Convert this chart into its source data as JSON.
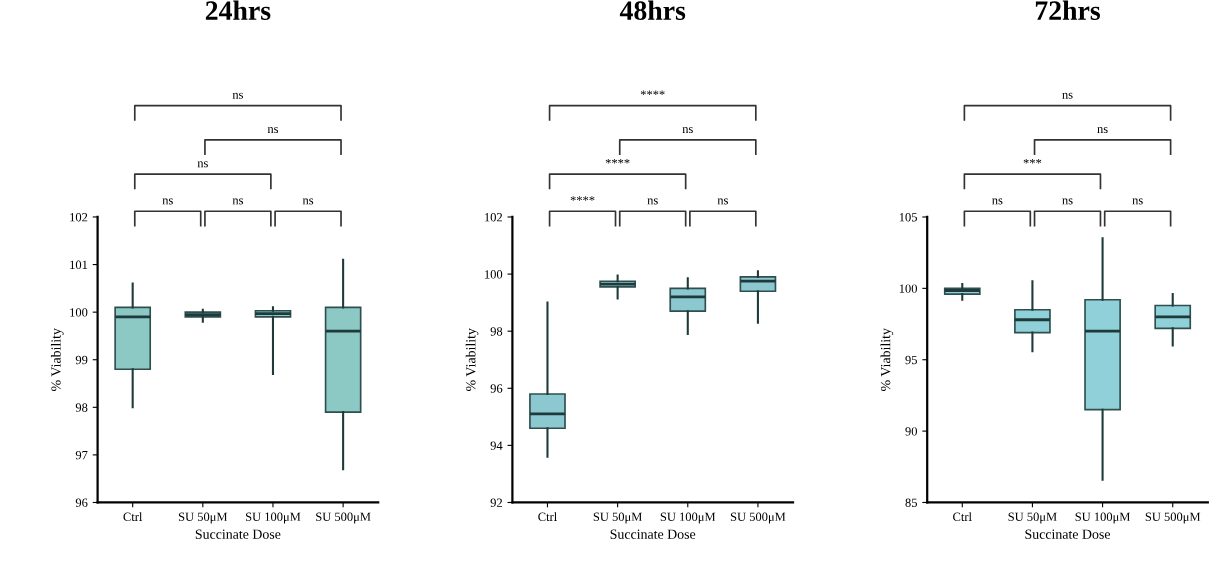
{
  "chart_data": [
    {
      "type": "box",
      "title": "24hrs",
      "xlabel": "Succinate Dose",
      "ylabel": "% Viability",
      "categories": [
        "Ctrl",
        "SU 50μM",
        "SU 100μM",
        "SU 500μM"
      ],
      "ylim": [
        96,
        102
      ],
      "yticks": [
        96,
        97,
        98,
        99,
        100,
        101,
        102
      ],
      "grid": false,
      "legend": false,
      "series": [
        {
          "color": "#8cc8c4",
          "boxes": [
            {
              "low": 98.0,
              "q1": 98.8,
              "median": 99.9,
              "q3": 100.1,
              "high": 100.6
            },
            {
              "low": 99.8,
              "q1": 99.9,
              "median": 99.95,
              "q3": 100.0,
              "high": 100.05
            },
            {
              "low": 98.7,
              "q1": 99.9,
              "median": 99.97,
              "q3": 100.03,
              "high": 100.1
            },
            {
              "low": 96.7,
              "q1": 97.9,
              "median": 99.6,
              "q3": 100.1,
              "high": 101.1
            }
          ]
        }
      ],
      "annotations": [
        "ns",
        "ns",
        "ns",
        "ns",
        "ns",
        "ns"
      ]
    },
    {
      "type": "box",
      "title": "48hrs",
      "xlabel": "Succinate Dose",
      "ylabel": "% Viability",
      "categories": [
        "Ctrl",
        "SU 50μM",
        "SU 100μM",
        "SU 500μM"
      ],
      "ylim": [
        92,
        102
      ],
      "yticks": [
        92,
        94,
        96,
        98,
        100,
        102
      ],
      "grid": false,
      "legend": false,
      "series": [
        {
          "color": "#8cc8d0",
          "boxes": [
            {
              "low": 93.6,
              "q1": 94.6,
              "median": 95.1,
              "q3": 95.8,
              "high": 99.0
            },
            {
              "low": 99.15,
              "q1": 99.55,
              "median": 99.65,
              "q3": 99.75,
              "high": 99.95
            },
            {
              "low": 97.9,
              "q1": 98.7,
              "median": 99.2,
              "q3": 99.5,
              "high": 99.85
            },
            {
              "low": 98.3,
              "q1": 99.4,
              "median": 99.75,
              "q3": 99.9,
              "high": 100.1
            }
          ]
        }
      ],
      "annotations": [
        "****",
        "ns",
        "ns",
        "****",
        "ns",
        "****"
      ]
    },
    {
      "type": "box",
      "title": "72hrs",
      "xlabel": "Succinate Dose",
      "ylabel": "% Viability",
      "categories": [
        "Ctrl",
        "SU 50μM",
        "SU 100μM",
        "SU 500μM"
      ],
      "ylim": [
        85,
        105
      ],
      "yticks": [
        85,
        90,
        95,
        100,
        105
      ],
      "grid": false,
      "legend": false,
      "series": [
        {
          "color": "#90d0d8",
          "boxes": [
            {
              "low": 99.2,
              "q1": 99.6,
              "median": 99.85,
              "q3": 100.0,
              "high": 100.3
            },
            {
              "low": 95.6,
              "q1": 96.9,
              "median": 97.8,
              "q3": 98.5,
              "high": 100.5
            },
            {
              "low": 86.6,
              "q1": 91.5,
              "median": 97.0,
              "q3": 99.2,
              "high": 103.5
            },
            {
              "low": 96.0,
              "q1": 97.2,
              "median": 98.0,
              "q3": 98.8,
              "high": 99.6
            }
          ]
        }
      ],
      "annotations": [
        "ns",
        "ns",
        "ns",
        "***",
        "ns",
        "ns"
      ]
    }
  ]
}
